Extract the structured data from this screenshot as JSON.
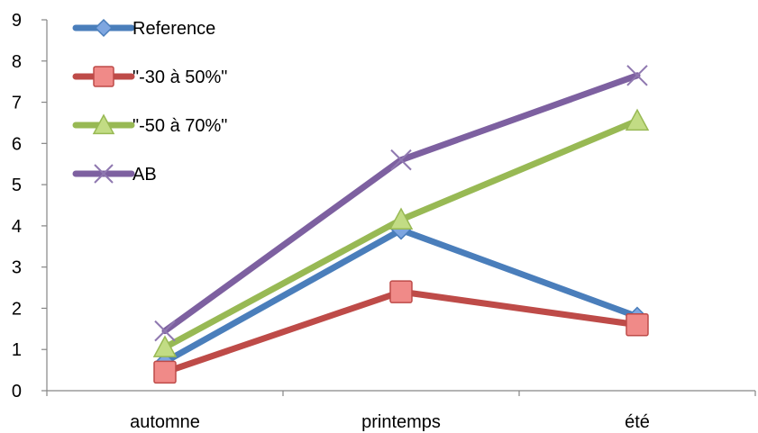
{
  "chart_data": {
    "type": "line",
    "categories": [
      "automne",
      "printemps",
      "été"
    ],
    "series": [
      {
        "name": "Reference",
        "values": [
          0.7,
          3.9,
          1.8
        ],
        "color": "#4a7ebb",
        "marker": "diamond"
      },
      {
        "name": "\"-30 à 50%\"",
        "values": [
          0.45,
          2.4,
          1.6
        ],
        "color": "#be4b48",
        "marker": "square"
      },
      {
        "name": "\"-50 à 70%\"",
        "values": [
          1.05,
          4.15,
          6.55
        ],
        "color": "#98b954",
        "marker": "triangle"
      },
      {
        "name": "AB",
        "values": [
          1.45,
          5.6,
          7.65
        ],
        "color": "#7d60a0",
        "marker": "cross"
      }
    ],
    "ylim": [
      0,
      9
    ],
    "yticks": [
      0,
      1,
      2,
      3,
      4,
      5,
      6,
      7,
      8,
      9
    ],
    "grid": false,
    "legend_position": "top-left"
  }
}
